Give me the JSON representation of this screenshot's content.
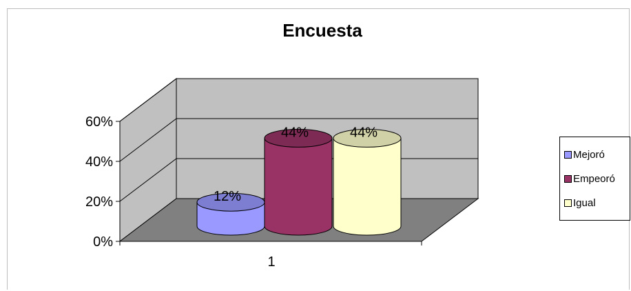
{
  "chart_data": {
    "type": "bar",
    "title": "Encuesta",
    "categories": [
      "1"
    ],
    "series": [
      {
        "name": "Mejoró",
        "values": [
          0.12
        ],
        "label": "12%"
      },
      {
        "name": "Empeoró",
        "values": [
          0.44
        ],
        "label": "44%"
      },
      {
        "name": "Igual",
        "values": [
          0.44
        ],
        "label": "44%"
      }
    ],
    "ylim": [
      0,
      0.6
    ],
    "yticks": [
      "0%",
      "20%",
      "40%",
      "60%"
    ],
    "legend_position": "right",
    "grid": true,
    "style": "3d-cylinder",
    "colors": {
      "series": [
        "#9999ff",
        "#993366",
        "#ffffcc"
      ],
      "back_wall": "#c0c0c0",
      "floor": "#808080",
      "gridline": "#000000"
    }
  }
}
